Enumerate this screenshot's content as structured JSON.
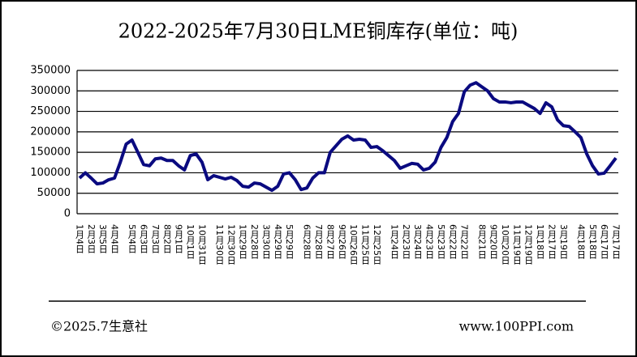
{
  "chart_data": {
    "type": "line",
    "title": "2022-2025年7月30日LME铜库存(单位：吨)",
    "categories": [
      "1月4日",
      null,
      "2月3日",
      null,
      "3月5日",
      null,
      "4月4日",
      null,
      null,
      "5月4日",
      null,
      "6月3日",
      null,
      "7月3日",
      null,
      "8月2日",
      null,
      "9月1日",
      null,
      "10月1日",
      null,
      "10月31日",
      null,
      null,
      "11月30日",
      null,
      "12月30日",
      null,
      "1月29日",
      null,
      "2月28日",
      null,
      "3月30日",
      null,
      "4月29日",
      null,
      "5月29日",
      null,
      null,
      "6月28日",
      null,
      "7月28日",
      null,
      "8月27日",
      null,
      "9月26日",
      null,
      "10月26日",
      null,
      "11月25日",
      null,
      "12月25日",
      null,
      null,
      "1月24日",
      null,
      "2月23日",
      null,
      "3月24日",
      null,
      "4月23日",
      null,
      "5月23日",
      null,
      "6月22日",
      null,
      "7月22日",
      null,
      null,
      "8月21日",
      null,
      "9月20日",
      null,
      "10月20日",
      null,
      "11月19日",
      null,
      "12月19日",
      null,
      "1月18日",
      null,
      "2月17日",
      null,
      "3月19日",
      null,
      null,
      "4月18日",
      null,
      "5月18日",
      null,
      "6月17日",
      null,
      "7月17日"
    ],
    "values": [
      87000,
      100000,
      87000,
      73000,
      75000,
      83000,
      87000,
      126000,
      170000,
      180000,
      150000,
      120000,
      117000,
      134000,
      136000,
      130000,
      130000,
      117000,
      107000,
      142000,
      146000,
      126000,
      83000,
      93000,
      89000,
      85000,
      89000,
      81000,
      67000,
      65000,
      75000,
      73000,
      65000,
      57000,
      67000,
      97000,
      100000,
      83000,
      59000,
      63000,
      87000,
      100000,
      100000,
      150000,
      166000,
      182000,
      190000,
      180000,
      182000,
      180000,
      162000,
      164000,
      154000,
      142000,
      130000,
      111000,
      117000,
      123000,
      121000,
      107000,
      111000,
      126000,
      162000,
      186000,
      225000,
      245000,
      298000,
      314000,
      320000,
      310000,
      300000,
      281000,
      273000,
      273000,
      271000,
      273000,
      273000,
      265000,
      257000,
      245000,
      271000,
      261000,
      229000,
      215000,
      213000,
      200000,
      186000,
      146000,
      117000,
      97000,
      99000,
      117000,
      136000
    ],
    "color": "#0a0a80",
    "ylim": [
      0,
      350000
    ],
    "yticks": [
      0,
      50000,
      100000,
      150000,
      200000,
      250000,
      300000,
      350000
    ],
    "grid": true,
    "footer_left": "©2025.7生意社",
    "footer_right": "www.100PPI.com"
  }
}
